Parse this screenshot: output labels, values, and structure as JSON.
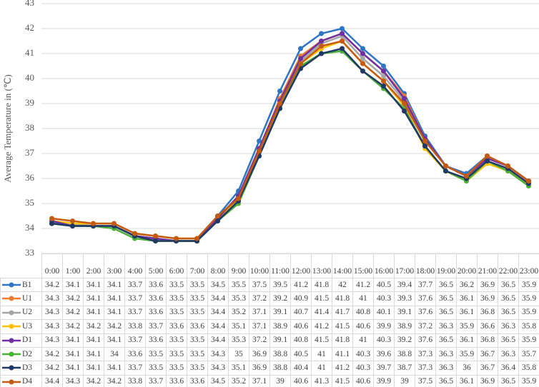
{
  "chart_data": {
    "type": "line",
    "y_label": "Average Temperature in (℃)",
    "categories": [
      "0:00",
      "1:00",
      "2:00",
      "3:00",
      "4:00",
      "5:00",
      "6:00",
      "7:00",
      "8:00",
      "9:00",
      "10:00",
      "11:00",
      "12:00",
      "13:00",
      "14:00",
      "15:00",
      "16:00",
      "17:00",
      "18:00",
      "19:00",
      "20:00",
      "21:00",
      "22:00",
      "23:00"
    ],
    "ylim": [
      33,
      43
    ],
    "yticks": [
      33,
      34,
      35,
      36,
      37,
      38,
      39,
      40,
      41,
      42,
      43
    ],
    "grid": true,
    "series": [
      {
        "name": "B1",
        "color": "#2e75c6",
        "values": [
          34.2,
          34.1,
          34.1,
          34.1,
          33.7,
          33.6,
          33.5,
          33.5,
          34.5,
          35.5,
          37.5,
          39.5,
          41.2,
          41.8,
          42,
          41.2,
          40.5,
          39.4,
          37.7,
          36.5,
          36.2,
          36.9,
          36.5,
          35.9
        ]
      },
      {
        "name": "U1",
        "color": "#ed7d31",
        "values": [
          34.3,
          34.2,
          34.1,
          34.1,
          33.7,
          33.6,
          33.5,
          33.5,
          34.4,
          35.3,
          37.2,
          39.2,
          40.9,
          41.5,
          41.8,
          41,
          40.3,
          39.3,
          37.6,
          36.5,
          36.1,
          36.9,
          36.5,
          35.9
        ]
      },
      {
        "name": "U2",
        "color": "#a5a5a5",
        "values": [
          34.3,
          34.2,
          34.1,
          34.1,
          33.7,
          33.6,
          33.5,
          33.5,
          34.4,
          35.2,
          37.1,
          39.1,
          40.7,
          41.4,
          41.7,
          40.8,
          40.1,
          39.1,
          37.6,
          36.5,
          36.1,
          36.8,
          36.5,
          35.9
        ]
      },
      {
        "name": "U3",
        "color": "#ffc000",
        "values": [
          34.3,
          34.2,
          34.2,
          34.2,
          33.8,
          33.7,
          33.6,
          33.6,
          34.4,
          35.1,
          37.1,
          38.9,
          40.6,
          41.2,
          41.5,
          40.6,
          39.9,
          38.9,
          37.2,
          36.3,
          35.9,
          36.6,
          36.3,
          35.8
        ]
      },
      {
        "name": "D1",
        "color": "#7030a0",
        "values": [
          34.3,
          34.1,
          34.1,
          34.1,
          33.7,
          33.6,
          33.5,
          33.5,
          34.4,
          35.3,
          37.2,
          39.1,
          40.8,
          41.5,
          41.8,
          41,
          40.3,
          39.2,
          37.6,
          36.5,
          36.1,
          36.8,
          36.5,
          35.9
        ]
      },
      {
        "name": "D2",
        "color": "#4caf3a",
        "values": [
          34.2,
          34.1,
          34.1,
          34,
          33.6,
          33.5,
          33.5,
          33.5,
          34.3,
          35,
          36.9,
          38.8,
          40.5,
          41,
          41.1,
          40.3,
          39.6,
          38.8,
          37.3,
          36.3,
          35.9,
          36.7,
          36.3,
          35.7
        ]
      },
      {
        "name": "D3",
        "color": "#1f3864",
        "values": [
          34.2,
          34.1,
          34.1,
          34.1,
          33.7,
          33.5,
          33.5,
          33.5,
          34.3,
          35.1,
          36.9,
          38.8,
          40.4,
          41,
          41.2,
          40.3,
          39.7,
          38.7,
          37.3,
          36.3,
          36,
          36.7,
          36.4,
          35.8
        ]
      },
      {
        "name": "D4",
        "color": "#c55a11",
        "values": [
          34.4,
          34.3,
          34.2,
          34.2,
          33.8,
          33.7,
          33.6,
          33.6,
          34.5,
          35.2,
          37.1,
          39,
          40.6,
          41.3,
          41.5,
          40.6,
          39.9,
          39,
          37.5,
          36.5,
          36.1,
          36.9,
          36.5,
          35.9
        ]
      }
    ]
  }
}
